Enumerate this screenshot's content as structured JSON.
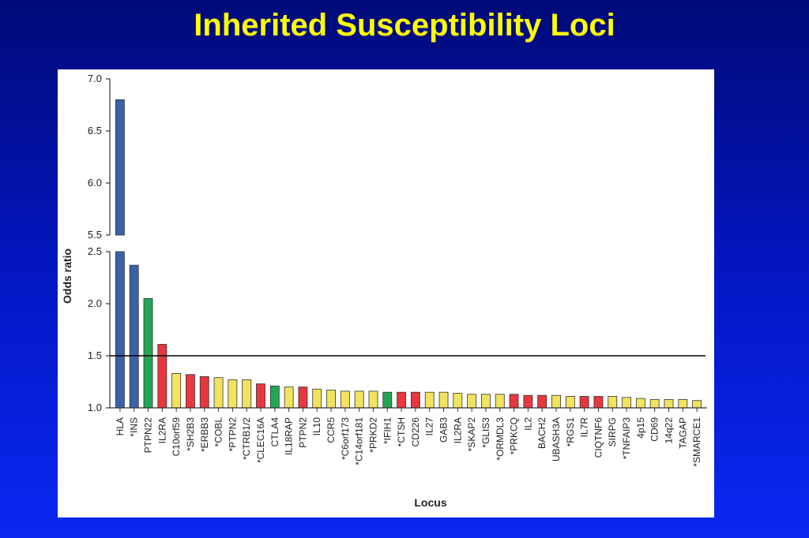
{
  "slide": {
    "title": "Inherited Susceptibility Loci"
  },
  "colors": {
    "blue": "#3a62a8",
    "green": "#22a655",
    "red": "#e8373f",
    "yellow": "#f2e35e",
    "stroke": "#333333",
    "reference_line": "#000000"
  },
  "chart_data": {
    "type": "bar",
    "xlabel": "Locus",
    "ylabel": "Odds ratio",
    "axis_break": {
      "lower_range": [
        1.0,
        2.5
      ],
      "upper_range": [
        5.5,
        7.0
      ]
    },
    "y_ticks_lower": [
      "1.0",
      "1.5",
      "2.0",
      "2.5"
    ],
    "y_ticks_upper": [
      "5.5",
      "6.0",
      "6.5",
      "7.0"
    ],
    "reference_line": 1.5,
    "categories": [
      "HLA",
      "*INS",
      "PTPN22",
      "IL2RA",
      "C10orf59",
      "*SH2B3",
      "*ERBB3",
      "*COBL",
      "*PTPN2",
      "*CTRB1/2",
      "*CLEC16A",
      "CTLA4",
      "IL18RAP",
      "PTPN2",
      "IL10",
      "CCR5",
      "*C6orf173",
      "*C14orf181",
      "*PRKD2",
      "*IFIH1",
      "*CTSH",
      "CD226",
      "IL27",
      "GAB3",
      "IL2RA",
      "*SKAP2",
      "*GLIS3",
      "*ORMDL3",
      "*PRKCQ",
      "IL2",
      "BACH2",
      "UBASH3A",
      "*RGS1",
      "IL7R",
      "CIQTNF6",
      "SIRPG",
      "*TNFAIP3",
      "4p15",
      "CD69",
      "14q22",
      "TAGAP",
      "*SMARCE1"
    ],
    "values": [
      6.8,
      2.37,
      2.05,
      1.61,
      1.33,
      1.32,
      1.3,
      1.29,
      1.27,
      1.27,
      1.23,
      1.21,
      1.2,
      1.2,
      1.18,
      1.17,
      1.16,
      1.16,
      1.16,
      1.15,
      1.15,
      1.15,
      1.15,
      1.15,
      1.14,
      1.13,
      1.13,
      1.13,
      1.13,
      1.12,
      1.12,
      1.12,
      1.11,
      1.11,
      1.11,
      1.11,
      1.1,
      1.09,
      1.08,
      1.08,
      1.08,
      1.07
    ],
    "bar_colors": [
      "blue",
      "blue",
      "green",
      "red",
      "yellow",
      "red",
      "red",
      "yellow",
      "yellow",
      "yellow",
      "red",
      "green",
      "yellow",
      "red",
      "yellow",
      "yellow",
      "yellow",
      "yellow",
      "yellow",
      "green",
      "red",
      "red",
      "yellow",
      "yellow",
      "yellow",
      "yellow",
      "yellow",
      "yellow",
      "red",
      "red",
      "red",
      "yellow",
      "yellow",
      "red",
      "red",
      "yellow",
      "yellow",
      "yellow",
      "yellow",
      "yellow",
      "yellow",
      "yellow"
    ]
  }
}
